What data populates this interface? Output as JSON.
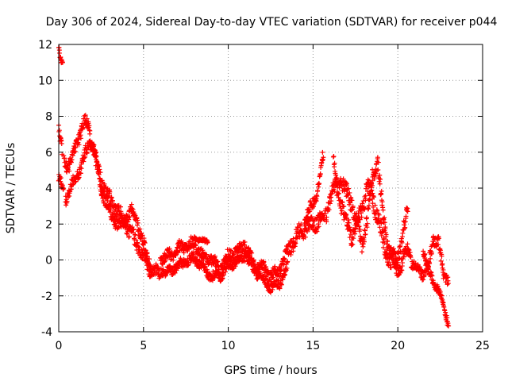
{
  "chart_data": {
    "type": "scatter",
    "title": "Day 306 of 2024, Sidereal Day-to-day VTEC variation (SDTVAR) for receiver p044",
    "xlabel": "GPS time / hours",
    "ylabel": "SDTVAR / TECUs",
    "xlim": [
      0,
      25
    ],
    "ylim": [
      -4,
      12
    ],
    "xticks": [
      0,
      5,
      10,
      15,
      20,
      25
    ],
    "yticks": [
      -4,
      -2,
      0,
      2,
      4,
      6,
      8,
      10,
      12
    ],
    "grid": true,
    "marker": "+",
    "color": "#ff0000",
    "series": [
      {
        "name": "SDTVAR",
        "bands": [
          {
            "x": [
              0.0,
              0.05,
              0.1,
              0.15,
              0.2,
              0.25
            ],
            "y": [
              11.8,
              11.5,
              11.2,
              11.0,
              10.9,
              10.8
            ],
            "spread": 0.3
          },
          {
            "x": [
              0.0,
              0.05,
              0.1,
              0.15,
              0.2
            ],
            "y": [
              7.6,
              7.0,
              6.6,
              6.3,
              6.0
            ],
            "spread": 0.6
          },
          {
            "x": [
              0.0,
              0.1,
              0.2,
              0.3
            ],
            "y": [
              4.6,
              4.4,
              4.1,
              3.8
            ],
            "spread": 0.4
          },
          {
            "x": [
              0.3,
              0.5,
              0.7,
              0.9,
              1.1,
              1.3,
              1.5,
              1.7,
              1.9,
              2.1,
              2.3,
              2.5,
              2.8,
              3.1,
              3.4,
              3.7,
              4.0,
              4.3,
              4.6,
              4.9,
              5.2,
              5.5
            ],
            "y": [
              5.5,
              5.3,
              5.4,
              6.0,
              6.6,
              7.2,
              7.7,
              7.6,
              6.8,
              5.8,
              5.0,
              4.5,
              3.8,
              3.2,
              2.8,
              2.4,
              1.9,
              1.4,
              0.9,
              0.4,
              -0.2,
              -0.6
            ],
            "spread": 0.7
          },
          {
            "x": [
              0.4,
              0.7,
              1.0,
              1.3,
              1.6,
              1.9,
              2.2,
              2.5,
              2.8,
              3.1,
              3.4,
              3.7,
              4.0,
              4.3,
              4.6,
              4.9,
              5.2,
              5.5,
              5.8,
              6.0
            ],
            "y": [
              3.3,
              4.0,
              4.6,
              5.2,
              6.0,
              6.6,
              5.8,
              4.0,
              3.2,
              2.5,
              2.1,
              1.9,
              2.4,
              2.8,
              2.2,
              1.2,
              0.2,
              -0.5,
              -0.7,
              -0.8
            ],
            "spread": 0.6
          },
          {
            "x": [
              6.0,
              6.5,
              7.0,
              7.5,
              8.0,
              8.5,
              9.0,
              9.5,
              10.0,
              10.5,
              11.0,
              11.5,
              12.0,
              12.5,
              13.0,
              13.5
            ],
            "y": [
              0.1,
              0.2,
              0.6,
              0.8,
              0.9,
              0.2,
              0.1,
              -0.5,
              0.2,
              0.5,
              0.9,
              -0.3,
              -0.4,
              -0.9,
              -0.6,
              0.5
            ],
            "spread": 0.6
          },
          {
            "x": [
              6.0,
              6.5,
              7.0,
              7.5,
              8.0,
              8.5,
              9.0,
              9.5,
              10.0,
              10.5,
              11.0,
              11.5,
              12.0,
              12.5,
              13.0,
              13.5
            ],
            "y": [
              -0.6,
              -0.7,
              -0.3,
              -0.1,
              0.1,
              -0.4,
              -0.9,
              -0.9,
              -0.3,
              -0.1,
              0.3,
              -0.5,
              -1.0,
              -1.5,
              -1.3,
              -0.4
            ],
            "spread": 0.5
          },
          {
            "x": [
              8.0,
              8.4,
              8.8
            ],
            "y": [
              1.2,
              1.1,
              1.0
            ],
            "spread": 0.2
          },
          {
            "x": [
              13.5,
              14.0,
              14.5,
              15.0,
              15.5,
              15.8,
              16.0,
              16.3,
              16.6,
              17.0
            ],
            "y": [
              0.5,
              1.3,
              1.8,
              2.0,
              2.3,
              2.6,
              3.5,
              4.0,
              4.6,
              3.6
            ],
            "spread": 0.8
          },
          {
            "x": [
              14.5,
              14.8,
              15.1,
              15.4,
              15.6
            ],
            "y": [
              2.2,
              2.8,
              3.3,
              4.5,
              5.8
            ],
            "spread": 0.6
          },
          {
            "x": [
              16.2,
              16.5,
              16.8,
              17.0,
              17.3,
              17.6,
              17.9,
              18.2,
              18.5,
              18.8,
              19.1,
              19.4,
              19.7,
              20.0,
              20.3,
              20.6
            ],
            "y": [
              5.2,
              3.6,
              2.6,
              2.0,
              1.4,
              2.0,
              3.0,
              4.0,
              3.6,
              2.4,
              1.2,
              0.2,
              -0.3,
              0.2,
              1.5,
              2.7
            ],
            "spread": 0.9
          },
          {
            "x": [
              17.0,
              17.3,
              17.6,
              17.9,
              18.2,
              18.5,
              18.8,
              19.1,
              19.4,
              19.7,
              20.0,
              20.3
            ],
            "y": [
              3.8,
              3.1,
              2.0,
              0.8,
              2.2,
              4.7,
              5.6,
              2.6,
              0.8,
              0.2,
              -0.5,
              -0.2
            ],
            "spread": 0.8
          },
          {
            "x": [
              20.3,
              20.6,
              20.9,
              21.2,
              21.5,
              21.8,
              22.1,
              22.4,
              22.7,
              23.0
            ],
            "y": [
              0.2,
              0.6,
              -0.3,
              -0.5,
              -0.8,
              -0.4,
              1.2,
              1.0,
              -0.9,
              -1.0
            ],
            "spread": 0.6
          },
          {
            "x": [
              21.5,
              21.8,
              22.1,
              22.4,
              22.7,
              22.85,
              23.0
            ],
            "y": [
              0.6,
              -0.6,
              -1.2,
              -1.7,
              -2.5,
              -3.1,
              -3.7
            ],
            "spread": 0.4
          }
        ]
      }
    ]
  }
}
